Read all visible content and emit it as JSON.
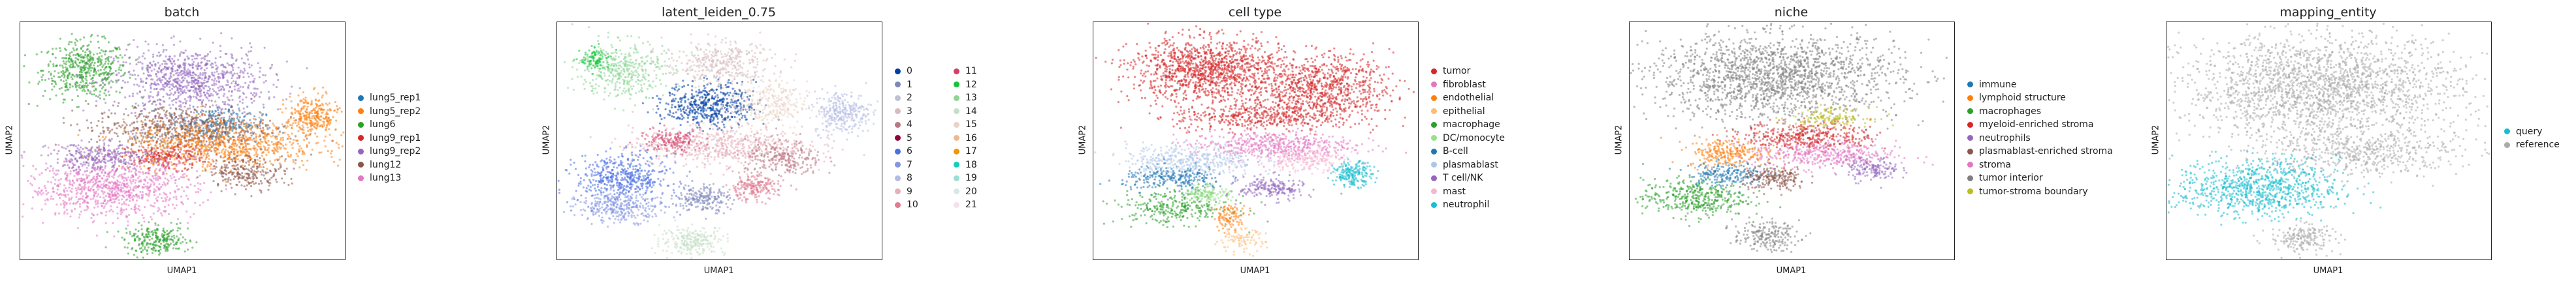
{
  "chart_data": [
    {
      "type": "scatter",
      "title": "batch",
      "xlabel": "UMAP1",
      "ylabel": "UMAP2",
      "legend_position": "right",
      "series": [
        {
          "name": "lung5_rep1",
          "color": "#1f77b4"
        },
        {
          "name": "lung5_rep2",
          "color": "#ff7f0e"
        },
        {
          "name": "lung6",
          "color": "#2ca02c"
        },
        {
          "name": "lung9_rep1",
          "color": "#d62728"
        },
        {
          "name": "lung9_rep2",
          "color": "#9467bd"
        },
        {
          "name": "lung12",
          "color": "#8c564b"
        },
        {
          "name": "lung13",
          "color": "#e377c2"
        }
      ],
      "regions": [
        {
          "series": "lung6",
          "x": 0.2,
          "y": 0.8,
          "rx": 0.13,
          "ry": 0.12,
          "n": 500
        },
        {
          "series": "lung9_rep2",
          "x": 0.52,
          "y": 0.75,
          "rx": 0.23,
          "ry": 0.14,
          "n": 900
        },
        {
          "series": "lung5_rep1",
          "x": 0.6,
          "y": 0.57,
          "rx": 0.15,
          "ry": 0.07,
          "n": 250
        },
        {
          "series": "lung12",
          "x": 0.5,
          "y": 0.55,
          "rx": 0.28,
          "ry": 0.1,
          "n": 700
        },
        {
          "series": "lung5_rep2",
          "x": 0.62,
          "y": 0.48,
          "rx": 0.3,
          "ry": 0.1,
          "n": 800
        },
        {
          "series": "lung5_rep2",
          "x": 0.9,
          "y": 0.6,
          "rx": 0.08,
          "ry": 0.09,
          "n": 300
        },
        {
          "series": "lung9_rep1",
          "x": 0.45,
          "y": 0.43,
          "rx": 0.12,
          "ry": 0.05,
          "n": 200
        },
        {
          "series": "lung12",
          "x": 0.7,
          "y": 0.37,
          "rx": 0.12,
          "ry": 0.07,
          "n": 250
        },
        {
          "series": "lung13",
          "x": 0.28,
          "y": 0.3,
          "rx": 0.26,
          "ry": 0.12,
          "n": 900
        },
        {
          "series": "lung9_rep2",
          "x": 0.25,
          "y": 0.43,
          "rx": 0.16,
          "ry": 0.06,
          "n": 300
        },
        {
          "series": "lung6",
          "x": 0.42,
          "y": 0.08,
          "rx": 0.1,
          "ry": 0.06,
          "n": 250
        }
      ]
    },
    {
      "type": "scatter",
      "title": "latent_leiden_0.75",
      "xlabel": "UMAP1",
      "ylabel": "UMAP2",
      "legend_position": "right",
      "series": [
        {
          "name": "0",
          "color": "#023fa5"
        },
        {
          "name": "1",
          "color": "#7d87b9"
        },
        {
          "name": "2",
          "color": "#bec1d4"
        },
        {
          "name": "3",
          "color": "#d6bcc0"
        },
        {
          "name": "4",
          "color": "#bb7784"
        },
        {
          "name": "5",
          "color": "#8e063b"
        },
        {
          "name": "6",
          "color": "#4a6fe3"
        },
        {
          "name": "7",
          "color": "#8595e1"
        },
        {
          "name": "8",
          "color": "#b5bbe3"
        },
        {
          "name": "9",
          "color": "#e6afb9"
        },
        {
          "name": "10",
          "color": "#e07b91"
        },
        {
          "name": "11",
          "color": "#d33f6a"
        },
        {
          "name": "12",
          "color": "#11c638"
        },
        {
          "name": "13",
          "color": "#8dd593"
        },
        {
          "name": "14",
          "color": "#c6dec7"
        },
        {
          "name": "15",
          "color": "#ead3c6"
        },
        {
          "name": "16",
          "color": "#f0b98d"
        },
        {
          "name": "17",
          "color": "#ef9708"
        },
        {
          "name": "18",
          "color": "#0fcfc0"
        },
        {
          "name": "19",
          "color": "#9cded6"
        },
        {
          "name": "20",
          "color": "#d5eae7"
        },
        {
          "name": "21",
          "color": "#f3e1eb"
        }
      ],
      "regions": [
        {
          "series": "13",
          "x": 0.2,
          "y": 0.8,
          "rx": 0.13,
          "ry": 0.12,
          "n": 400
        },
        {
          "series": "3",
          "x": 0.5,
          "y": 0.82,
          "rx": 0.17,
          "ry": 0.1,
          "n": 400
        },
        {
          "series": "0",
          "x": 0.47,
          "y": 0.65,
          "rx": 0.14,
          "ry": 0.09,
          "n": 500
        },
        {
          "series": "15",
          "x": 0.65,
          "y": 0.65,
          "rx": 0.12,
          "ry": 0.1,
          "n": 300
        },
        {
          "series": "8",
          "x": 0.88,
          "y": 0.62,
          "rx": 0.09,
          "ry": 0.09,
          "n": 300
        },
        {
          "series": "9",
          "x": 0.5,
          "y": 0.48,
          "rx": 0.27,
          "ry": 0.08,
          "n": 600
        },
        {
          "series": "4",
          "x": 0.7,
          "y": 0.42,
          "rx": 0.12,
          "ry": 0.08,
          "n": 250
        },
        {
          "series": "11",
          "x": 0.35,
          "y": 0.5,
          "rx": 0.1,
          "ry": 0.05,
          "n": 150
        },
        {
          "series": "6",
          "x": 0.2,
          "y": 0.34,
          "rx": 0.14,
          "ry": 0.1,
          "n": 500
        },
        {
          "series": "7",
          "x": 0.2,
          "y": 0.22,
          "rx": 0.14,
          "ry": 0.06,
          "n": 300
        },
        {
          "series": "1",
          "x": 0.45,
          "y": 0.26,
          "rx": 0.08,
          "ry": 0.06,
          "n": 200
        },
        {
          "series": "10",
          "x": 0.6,
          "y": 0.3,
          "rx": 0.08,
          "ry": 0.05,
          "n": 200
        },
        {
          "series": "14",
          "x": 0.42,
          "y": 0.08,
          "rx": 0.1,
          "ry": 0.06,
          "n": 250
        },
        {
          "series": "12",
          "x": 0.12,
          "y": 0.84,
          "rx": 0.05,
          "ry": 0.05,
          "n": 100
        }
      ]
    },
    {
      "type": "scatter",
      "title": "cell type",
      "xlabel": "UMAP1",
      "ylabel": "UMAP2",
      "legend_position": "right",
      "series": [
        {
          "name": "tumor",
          "color": "#d62728"
        },
        {
          "name": "fibroblast",
          "color": "#e377c2"
        },
        {
          "name": "endothelial",
          "color": "#ff7f0e"
        },
        {
          "name": "epithelial",
          "color": "#ffbb78"
        },
        {
          "name": "macrophage",
          "color": "#2ca02c"
        },
        {
          "name": "DC/monocyte",
          "color": "#98df8a"
        },
        {
          "name": "B-cell",
          "color": "#1f77b4"
        },
        {
          "name": "plasmablast",
          "color": "#aec7e8"
        },
        {
          "name": "T cell/NK",
          "color": "#9467bd"
        },
        {
          "name": "mast",
          "color": "#f7b6d2"
        },
        {
          "name": "neutrophil",
          "color": "#17becf"
        }
      ],
      "regions": [
        {
          "series": "tumor",
          "x": 0.35,
          "y": 0.8,
          "rx": 0.23,
          "ry": 0.13,
          "n": 1200
        },
        {
          "series": "tumor",
          "x": 0.7,
          "y": 0.72,
          "rx": 0.22,
          "ry": 0.14,
          "n": 900
        },
        {
          "series": "tumor",
          "x": 0.5,
          "y": 0.6,
          "rx": 0.25,
          "ry": 0.06,
          "n": 400
        },
        {
          "series": "fibroblast",
          "x": 0.55,
          "y": 0.48,
          "rx": 0.25,
          "ry": 0.06,
          "n": 500
        },
        {
          "series": "plasmablast",
          "x": 0.3,
          "y": 0.42,
          "rx": 0.2,
          "ry": 0.07,
          "n": 400
        },
        {
          "series": "B-cell",
          "x": 0.25,
          "y": 0.34,
          "rx": 0.16,
          "ry": 0.05,
          "n": 250
        },
        {
          "series": "macrophage",
          "x": 0.25,
          "y": 0.22,
          "rx": 0.18,
          "ry": 0.07,
          "n": 300
        },
        {
          "series": "T cell/NK",
          "x": 0.55,
          "y": 0.3,
          "rx": 0.1,
          "ry": 0.05,
          "n": 200
        },
        {
          "series": "neutrophil",
          "x": 0.8,
          "y": 0.36,
          "rx": 0.06,
          "ry": 0.05,
          "n": 200
        },
        {
          "series": "endothelial",
          "x": 0.42,
          "y": 0.18,
          "rx": 0.05,
          "ry": 0.05,
          "n": 100
        },
        {
          "series": "DC/monocyte",
          "x": 0.35,
          "y": 0.28,
          "rx": 0.07,
          "ry": 0.04,
          "n": 120
        },
        {
          "series": "mast",
          "x": 0.65,
          "y": 0.42,
          "rx": 0.12,
          "ry": 0.05,
          "n": 200
        },
        {
          "series": "epithelial",
          "x": 0.45,
          "y": 0.08,
          "rx": 0.08,
          "ry": 0.05,
          "n": 100
        }
      ]
    },
    {
      "type": "scatter",
      "title": "niche",
      "xlabel": "UMAP1",
      "ylabel": "UMAP2",
      "legend_position": "right",
      "series": [
        {
          "name": "immune",
          "color": "#1f77b4"
        },
        {
          "name": "lymphoid structure",
          "color": "#ff7f0e"
        },
        {
          "name": "macrophages",
          "color": "#2ca02c"
        },
        {
          "name": "myeloid-enriched stroma",
          "color": "#d62728"
        },
        {
          "name": "neutrophils",
          "color": "#9467bd"
        },
        {
          "name": "plasmablast-enriched stroma",
          "color": "#8c564b"
        },
        {
          "name": "stroma",
          "color": "#e377c2"
        },
        {
          "name": "tumor interior",
          "color": "#7f7f7f"
        },
        {
          "name": "tumor-stroma boundary",
          "color": "#bcbd22"
        }
      ],
      "regions": [
        {
          "series": "tumor interior",
          "x": 0.45,
          "y": 0.77,
          "rx": 0.38,
          "ry": 0.18,
          "n": 1800
        },
        {
          "series": "tumor interior",
          "x": 0.42,
          "y": 0.1,
          "rx": 0.1,
          "ry": 0.06,
          "n": 200
        },
        {
          "series": "myeloid-enriched stroma",
          "x": 0.55,
          "y": 0.52,
          "rx": 0.2,
          "ry": 0.06,
          "n": 400
        },
        {
          "series": "stroma",
          "x": 0.6,
          "y": 0.44,
          "rx": 0.22,
          "ry": 0.06,
          "n": 400
        },
        {
          "series": "lymphoid structure",
          "x": 0.3,
          "y": 0.45,
          "rx": 0.12,
          "ry": 0.06,
          "n": 250
        },
        {
          "series": "macrophages",
          "x": 0.2,
          "y": 0.26,
          "rx": 0.16,
          "ry": 0.08,
          "n": 400
        },
        {
          "series": "immune",
          "x": 0.3,
          "y": 0.36,
          "rx": 0.12,
          "ry": 0.05,
          "n": 200
        },
        {
          "series": "neutrophils",
          "x": 0.75,
          "y": 0.38,
          "rx": 0.08,
          "ry": 0.05,
          "n": 150
        },
        {
          "series": "plasmablast-enriched stroma",
          "x": 0.45,
          "y": 0.34,
          "rx": 0.1,
          "ry": 0.05,
          "n": 200
        },
        {
          "series": "tumor-stroma boundary",
          "x": 0.62,
          "y": 0.6,
          "rx": 0.12,
          "ry": 0.04,
          "n": 150
        }
      ]
    },
    {
      "type": "scatter",
      "title": "mapping_entity",
      "xlabel": "UMAP1",
      "ylabel": "UMAP2",
      "legend_position": "right",
      "series": [
        {
          "name": "query",
          "color": "#17becf"
        },
        {
          "name": "reference",
          "color": "#aaaaaa"
        }
      ],
      "regions": [
        {
          "series": "reference",
          "x": 0.48,
          "y": 0.72,
          "rx": 0.42,
          "ry": 0.22,
          "n": 2200
        },
        {
          "series": "reference",
          "x": 0.6,
          "y": 0.45,
          "rx": 0.3,
          "ry": 0.1,
          "n": 500
        },
        {
          "series": "reference",
          "x": 0.42,
          "y": 0.09,
          "rx": 0.1,
          "ry": 0.06,
          "n": 200
        },
        {
          "series": "query",
          "x": 0.28,
          "y": 0.3,
          "rx": 0.25,
          "ry": 0.12,
          "n": 900
        }
      ]
    }
  ]
}
